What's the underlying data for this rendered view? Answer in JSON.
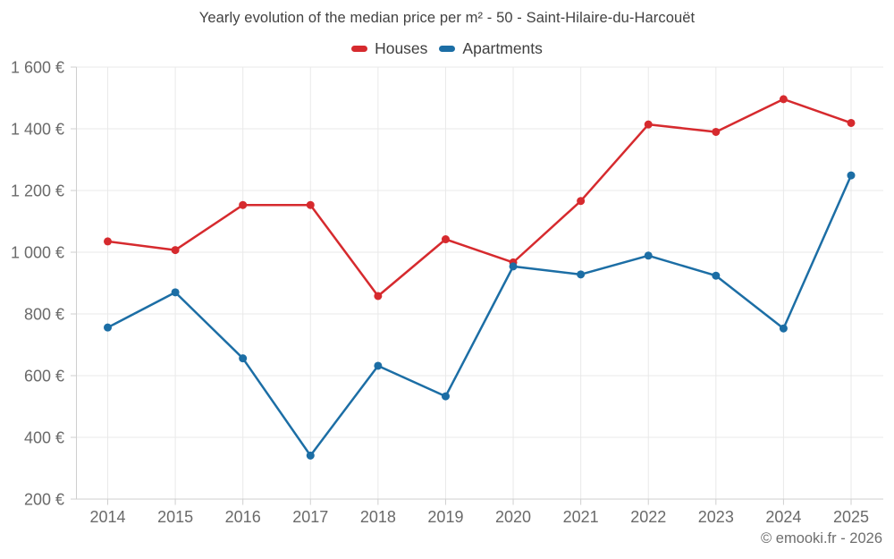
{
  "title": "Yearly evolution of the median price per m² - 50 - Saint-Hilaire-du-Harcouët",
  "legend": {
    "items": [
      {
        "label": "Houses",
        "color": "#d62a2e"
      },
      {
        "label": "Apartments",
        "color": "#1c6ea5"
      }
    ]
  },
  "copyright": "© emooki.fr - 2026",
  "colors": {
    "background": "#ffffff",
    "grid": "#e9e9e9",
    "axis": "#cfcfcf",
    "tick_text": "#6a6a6a",
    "houses": "#d62a2e",
    "apartments": "#1c6ea5"
  },
  "chart_data": {
    "type": "line",
    "title": "Yearly evolution of the median price per m² - 50 - Saint-Hilaire-du-Harcouët",
    "categories": [
      "2014",
      "2015",
      "2016",
      "2017",
      "2018",
      "2019",
      "2020",
      "2021",
      "2022",
      "2023",
      "2024",
      "2025"
    ],
    "series": [
      {
        "name": "Houses",
        "color": "#d62a2e",
        "values": [
          1035,
          1007,
          1153,
          1153,
          858,
          1042,
          967,
          1166,
          1414,
          1390,
          1496,
          1419
        ]
      },
      {
        "name": "Apartments",
        "color": "#1c6ea5",
        "values": [
          756,
          870,
          656,
          341,
          632,
          533,
          954,
          928,
          989,
          924,
          753,
          1249
        ]
      }
    ],
    "xlabel": "",
    "ylabel": "",
    "ylim": [
      200,
      1600
    ],
    "y_ticks": {
      "values": [
        200,
        400,
        600,
        800,
        1000,
        1200,
        1400,
        1600
      ],
      "labels": [
        "200 €",
        "400 €",
        "600 €",
        "800 €",
        "1 000 €",
        "1 200 €",
        "1 400 €",
        "1 600 €"
      ]
    },
    "grid": true,
    "legend_position": "top",
    "marker_radius": 4.5,
    "line_width": 2.5
  }
}
